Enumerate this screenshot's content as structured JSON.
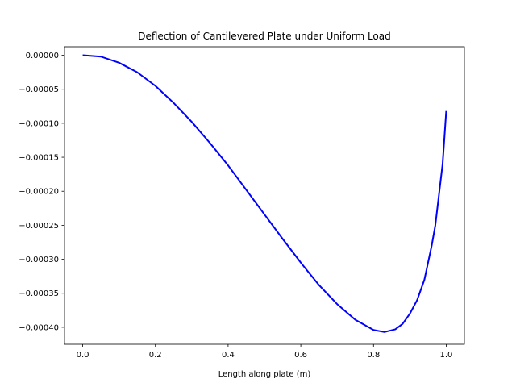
{
  "chart_data": {
    "type": "line",
    "title": "Deflection of Cantilevered Plate under Uniform Load",
    "xlabel": "Length along plate (m)",
    "ylabel": "",
    "xlim": [
      -0.05,
      1.05
    ],
    "ylim": [
      -0.000425,
      1.25e-05
    ],
    "grid": false,
    "xticks": [
      0.0,
      0.2,
      0.4,
      0.6,
      0.8,
      1.0
    ],
    "xtick_labels": [
      "0.0",
      "0.2",
      "0.4",
      "0.6",
      "0.8",
      "1.0"
    ],
    "yticks": [
      0,
      -5e-05,
      -0.0001,
      -0.00015,
      -0.0002,
      -0.00025,
      -0.0003,
      -0.00035,
      -0.0004
    ],
    "ytick_labels": [
      "0.00000",
      "−0.00005",
      "−0.00010",
      "−0.00015",
      "−0.00020",
      "−0.00025",
      "−0.00030",
      "−0.00035",
      "−0.00040"
    ],
    "series": [
      {
        "color": "#0000ff",
        "x": [
          0.0,
          0.05,
          0.1,
          0.15,
          0.2,
          0.25,
          0.3,
          0.35,
          0.4,
          0.45,
          0.5,
          0.55,
          0.6,
          0.65,
          0.7,
          0.75,
          0.8,
          0.83,
          0.86,
          0.88,
          0.9,
          0.92,
          0.94,
          0.96,
          0.97,
          0.98,
          0.99,
          1.0
        ],
        "y": [
          0.0,
          -2e-06,
          -1.1e-05,
          -2.5e-05,
          -4.5e-05,
          -7e-05,
          -9.8e-05,
          -0.000129,
          -0.000162,
          -0.000198,
          -0.000234,
          -0.00027,
          -0.000305,
          -0.000338,
          -0.000366,
          -0.000389,
          -0.000404,
          -0.000407,
          -0.000403,
          -0.000395,
          -0.00038,
          -0.00036,
          -0.00033,
          -0.00028,
          -0.00025,
          -0.000205,
          -0.00016,
          -8.2e-05
        ]
      }
    ]
  }
}
